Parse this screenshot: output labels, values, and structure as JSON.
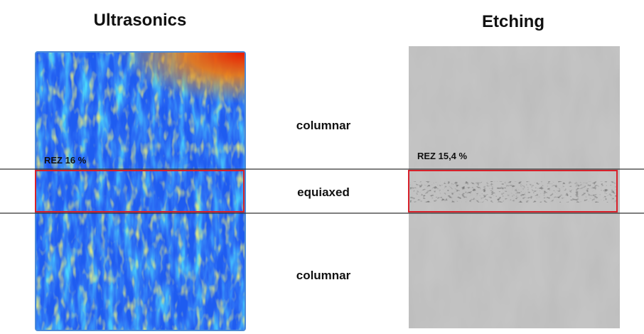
{
  "panels": [
    {
      "title": "Ultrasonics",
      "label": "REZ 16 %"
    },
    {
      "title": "Etching",
      "label": "REZ 15,4 %"
    }
  ],
  "zones": [
    "columnar",
    "equiaxed",
    "columnar"
  ]
}
